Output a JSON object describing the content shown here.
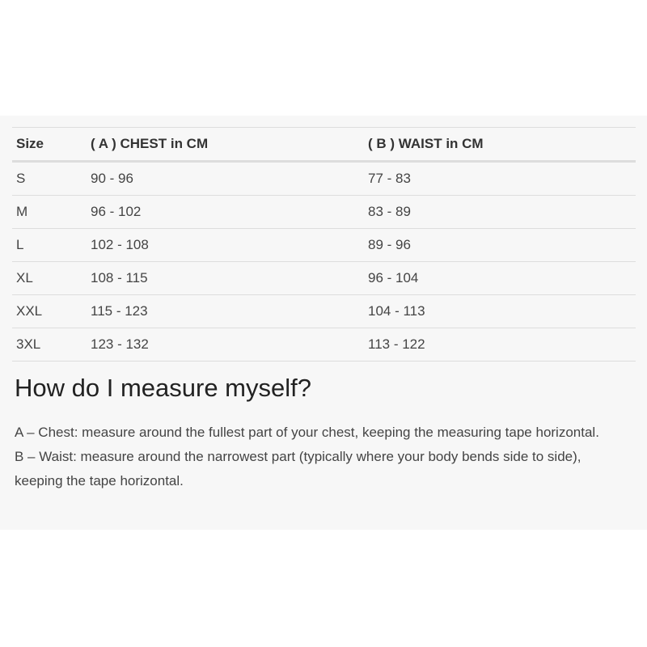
{
  "table": {
    "headers": [
      "Size",
      "( A ) CHEST in CM",
      "( B ) WAIST in CM"
    ],
    "rows": [
      [
        "S",
        "90 - 96",
        "77 - 83"
      ],
      [
        "M",
        "96 - 102",
        "83 - 89"
      ],
      [
        "L",
        "102 - 108",
        "89 - 96"
      ],
      [
        "XL",
        "108 - 115",
        "96 - 104"
      ],
      [
        "XXL",
        "115 - 123",
        "104 - 113"
      ],
      [
        "3XL",
        "123 - 132",
        "113 - 122"
      ]
    ]
  },
  "guide": {
    "title": "How do I measure myself?",
    "items": [
      "A – Chest: measure around the fullest part of your chest, keeping the measuring tape horizontal.",
      "B – Waist: measure around the narrowest part (typically where your body bends side to side), keeping the tape horizontal."
    ]
  }
}
